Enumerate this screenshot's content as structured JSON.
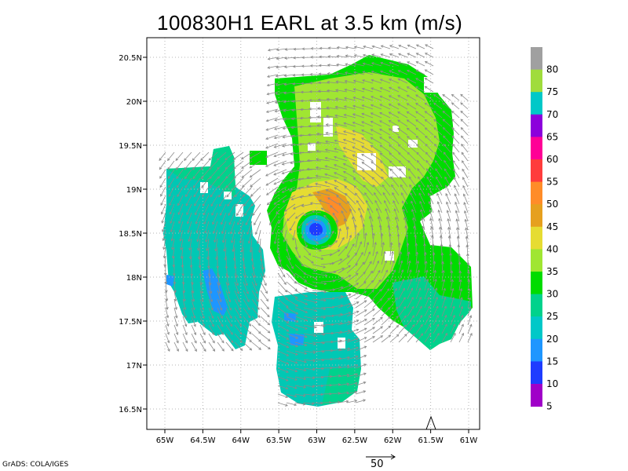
{
  "title": "100830H1 EARL at 3.5 km (m/s)",
  "credit": "GrADS: COLA/IGES",
  "vector_reference": {
    "label": "50",
    "value": 50
  },
  "map": {
    "lon_range": [
      -65.2,
      -60.85
    ],
    "lat_range": [
      16.3,
      20.6
    ],
    "x_ticks": [
      "65W",
      "64.5W",
      "64W",
      "63.5W",
      "63W",
      "62.5W",
      "62W",
      "61.5W",
      "61W"
    ],
    "y_ticks": [
      "20.5N",
      "20N",
      "19.5N",
      "19N",
      "18.5N",
      "18N",
      "17.5N",
      "17N",
      "16.5N"
    ],
    "grid": "dotted",
    "storm_center": {
      "lon": -62.98,
      "lat": 18.55
    }
  },
  "colorbar": {
    "labels": [
      "80",
      "75",
      "70",
      "65",
      "60",
      "55",
      "50",
      "45",
      "40",
      "35",
      "30",
      "25",
      "20",
      "15",
      "10",
      "5"
    ],
    "colors": [
      "#a0a0a0",
      "#a0dc3c",
      "#00c8c8",
      "#8c00dc",
      "#ff0096",
      "#ff3c3c",
      "#ff8c28",
      "#e6a01e",
      "#e6dc32",
      "#a0e632",
      "#00dc00",
      "#00d28c",
      "#00c8c8",
      "#1e96ff",
      "#1e3cff",
      "#a000c8"
    ]
  }
}
